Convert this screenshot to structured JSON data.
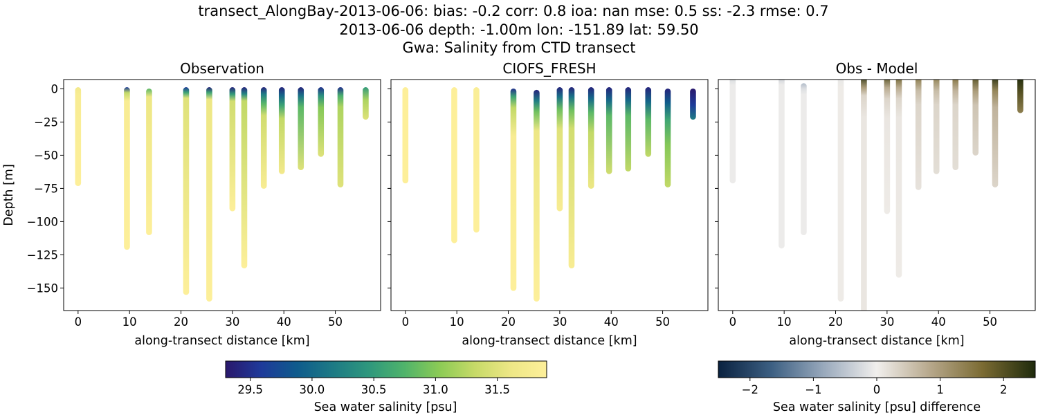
{
  "figure": {
    "title_lines": [
      "transect_AlongBay-2013-06-06: bias: -0.2  corr: 0.8  ioa: nan  mse: 0.5  ss: -2.3  rmse: 0.7",
      "2013-06-06 depth: -1.00m lon: -151.89 lat: 59.50",
      "Gwa: Salinity from CTD transect"
    ]
  },
  "chart_data": [
    {
      "type": "scatter",
      "title": "Observation",
      "xlabel": "along-transect distance [km]",
      "ylabel": "Depth [m]",
      "xticks": [
        "0",
        "10",
        "20",
        "30",
        "40",
        "50"
      ],
      "yticks": [
        "0",
        "−25",
        "−50",
        "−75",
        "−100",
        "−125",
        "−150"
      ],
      "xlim": [
        -2.8,
        58.8
      ],
      "ylim": [
        -167,
        7
      ],
      "colormap": "haline",
      "profiles": [
        {
          "x": 0.0,
          "top": -1,
          "bottom": -71,
          "stops": [
            [
              0,
              31.7
            ],
            [
              6,
              31.8
            ],
            [
              71,
              31.9
            ]
          ]
        },
        {
          "x": 9.5,
          "top": -1,
          "bottom": -119,
          "stops": [
            [
              0,
              29.6
            ],
            [
              4,
              31.3
            ],
            [
              10,
              31.8
            ],
            [
              119,
              31.9
            ]
          ]
        },
        {
          "x": 13.8,
          "top": -2,
          "bottom": -108,
          "stops": [
            [
              0,
              30.8
            ],
            [
              6,
              31.6
            ],
            [
              108,
              31.9
            ]
          ]
        },
        {
          "x": 21.0,
          "top": -1,
          "bottom": -153,
          "stops": [
            [
              0,
              29.6
            ],
            [
              4,
              30.6
            ],
            [
              8,
              31.5
            ],
            [
              153,
              31.9
            ]
          ]
        },
        {
          "x": 25.5,
          "top": -1,
          "bottom": -158,
          "stops": [
            [
              0,
              29.4
            ],
            [
              4,
              30.6
            ],
            [
              9,
              31.6
            ],
            [
              158,
              31.9
            ]
          ]
        },
        {
          "x": 30.0,
          "top": -1,
          "bottom": -90,
          "stops": [
            [
              0,
              29.4
            ],
            [
              5,
              30.5
            ],
            [
              10,
              31.4
            ],
            [
              90,
              31.9
            ]
          ]
        },
        {
          "x": 32.3,
          "top": -1,
          "bottom": -133,
          "stops": [
            [
              0,
              29.4
            ],
            [
              5,
              30.3
            ],
            [
              10,
              31.3
            ],
            [
              133,
              31.9
            ]
          ]
        },
        {
          "x": 36.1,
          "top": -1,
          "bottom": -73,
          "stops": [
            [
              0,
              29.4
            ],
            [
              5,
              30.2
            ],
            [
              12,
              30.8
            ],
            [
              20,
              31.4
            ],
            [
              73,
              31.8
            ]
          ]
        },
        {
          "x": 39.6,
          "top": -1,
          "bottom": -62,
          "stops": [
            [
              0,
              29.4
            ],
            [
              6,
              30.0
            ],
            [
              13,
              30.6
            ],
            [
              22,
              31.3
            ],
            [
              62,
              31.7
            ]
          ]
        },
        {
          "x": 43.3,
          "top": -1,
          "bottom": -59,
          "stops": [
            [
              0,
              29.4
            ],
            [
              6,
              30.1
            ],
            [
              14,
              30.8
            ],
            [
              59,
              31.5
            ]
          ]
        },
        {
          "x": 47.2,
          "top": -1,
          "bottom": -49,
          "stops": [
            [
              0,
              29.5
            ],
            [
              6,
              30.4
            ],
            [
              14,
              31.0
            ],
            [
              49,
              31.5
            ]
          ]
        },
        {
          "x": 51.0,
          "top": -1,
          "bottom": -72,
          "stops": [
            [
              0,
              29.5
            ],
            [
              6,
              30.7
            ],
            [
              14,
              31.2
            ],
            [
              72,
              31.5
            ]
          ]
        },
        {
          "x": 55.9,
          "top": -1,
          "bottom": -21,
          "stops": [
            [
              0,
              30.5
            ],
            [
              8,
              31.2
            ],
            [
              21,
              31.5
            ]
          ]
        }
      ]
    },
    {
      "type": "scatter",
      "title": "CIOFS_FRESH",
      "xlabel": "along-transect distance [km]",
      "ylabel": "",
      "xticks": [
        "0",
        "10",
        "20",
        "30",
        "40",
        "50"
      ],
      "xlim": [
        -2.8,
        58.8
      ],
      "ylim": [
        -167,
        7
      ],
      "colormap": "haline",
      "profiles": [
        {
          "x": 0.0,
          "top": -1,
          "bottom": -69,
          "stops": [
            [
              0,
              31.9
            ],
            [
              69,
              31.9
            ]
          ]
        },
        {
          "x": 9.5,
          "top": -1,
          "bottom": -114,
          "stops": [
            [
              0,
              31.9
            ],
            [
              114,
              31.9
            ]
          ]
        },
        {
          "x": 13.8,
          "top": -1,
          "bottom": -106,
          "stops": [
            [
              0,
              31.85
            ],
            [
              106,
              31.9
            ]
          ]
        },
        {
          "x": 21.0,
          "top": -2,
          "bottom": -150,
          "stops": [
            [
              0,
              29.5
            ],
            [
              6,
              30.6
            ],
            [
              14,
              31.3
            ],
            [
              35,
              31.8
            ],
            [
              150,
              31.9
            ]
          ]
        },
        {
          "x": 25.5,
          "top": -3,
          "bottom": -158,
          "stops": [
            [
              0,
              29.4
            ],
            [
              8,
              30.2
            ],
            [
              16,
              30.9
            ],
            [
              30,
              31.6
            ],
            [
              158,
              31.9
            ]
          ]
        },
        {
          "x": 30.0,
          "top": -1,
          "bottom": -90,
          "stops": [
            [
              0,
              29.4
            ],
            [
              7,
              30.1
            ],
            [
              16,
              30.9
            ],
            [
              30,
              31.5
            ],
            [
              90,
              31.8
            ]
          ]
        },
        {
          "x": 32.3,
          "top": -1,
          "bottom": -133,
          "stops": [
            [
              0,
              29.4
            ],
            [
              7,
              30.1
            ],
            [
              17,
              30.9
            ],
            [
              30,
              31.4
            ],
            [
              133,
              31.8
            ]
          ]
        },
        {
          "x": 36.1,
          "top": -1,
          "bottom": -73,
          "stops": [
            [
              0,
              29.4
            ],
            [
              8,
              30.0
            ],
            [
              18,
              30.8
            ],
            [
              32,
              31.3
            ],
            [
              73,
              31.6
            ]
          ]
        },
        {
          "x": 39.6,
          "top": -1,
          "bottom": -62,
          "stops": [
            [
              0,
              29.4
            ],
            [
              9,
              30.0
            ],
            [
              20,
              30.8
            ],
            [
              62,
              31.4
            ]
          ]
        },
        {
          "x": 43.3,
          "top": -1,
          "bottom": -60,
          "stops": [
            [
              0,
              29.4
            ],
            [
              9,
              30.0
            ],
            [
              20,
              30.8
            ],
            [
              60,
              31.3
            ]
          ]
        },
        {
          "x": 47.2,
          "top": -1,
          "bottom": -49,
          "stops": [
            [
              0,
              29.4
            ],
            [
              10,
              30.0
            ],
            [
              22,
              30.8
            ],
            [
              49,
              31.3
            ]
          ]
        },
        {
          "x": 51.0,
          "top": -2,
          "bottom": -72,
          "stops": [
            [
              0,
              29.4
            ],
            [
              10,
              29.9
            ],
            [
              22,
              30.6
            ],
            [
              40,
              31.0
            ],
            [
              72,
              31.3
            ]
          ]
        },
        {
          "x": 55.9,
          "top": -2,
          "bottom": -21,
          "stops": [
            [
              0,
              29.3
            ],
            [
              10,
              29.6
            ],
            [
              21,
              30.2
            ]
          ]
        }
      ]
    },
    {
      "type": "scatter",
      "title": "Obs - Model",
      "xlabel": "along-transect distance [km]",
      "ylabel": "",
      "xticks": [
        "0",
        "10",
        "20",
        "30",
        "40",
        "50"
      ],
      "xlim": [
        -2.8,
        58.8
      ],
      "ylim": [
        -167,
        7
      ],
      "colormap": "diff",
      "profiles": [
        {
          "x": 0.0,
          "top": 7,
          "bottom": -69,
          "stops": [
            [
              0,
              -0.3
            ],
            [
              6,
              -0.05
            ],
            [
              76,
              -0.05
            ]
          ]
        },
        {
          "x": 9.5,
          "top": 7,
          "bottom": -118,
          "stops": [
            [
              0,
              -0.4
            ],
            [
              6,
              -0.05
            ],
            [
              125,
              -0.05
            ]
          ]
        },
        {
          "x": 13.8,
          "top": 2,
          "bottom": -108,
          "stops": [
            [
              0,
              -0.6
            ],
            [
              4,
              -0.2
            ],
            [
              8,
              -0.05
            ],
            [
              110,
              -0.05
            ]
          ]
        },
        {
          "x": 21.0,
          "top": 7,
          "bottom": -158,
          "stops": [
            [
              0,
              -0.1
            ],
            [
              8,
              0.05
            ],
            [
              165,
              0.05
            ]
          ]
        },
        {
          "x": 25.5,
          "top": 7,
          "bottom": -167,
          "stops": [
            [
              0,
              2.3
            ],
            [
              8,
              1.0
            ],
            [
              14,
              0.3
            ],
            [
              30,
              0.1
            ],
            [
              174,
              0.1
            ]
          ]
        },
        {
          "x": 30.0,
          "top": 7,
          "bottom": -92,
          "stops": [
            [
              0,
              2.0
            ],
            [
              8,
              0.8
            ],
            [
              16,
              0.3
            ],
            [
              30,
              0.1
            ],
            [
              99,
              0.05
            ]
          ]
        },
        {
          "x": 32.3,
          "top": 7,
          "bottom": -140,
          "stops": [
            [
              0,
              1.8
            ],
            [
              8,
              0.8
            ],
            [
              16,
              0.3
            ],
            [
              30,
              0.1
            ],
            [
              147,
              0.05
            ]
          ]
        },
        {
          "x": 36.1,
          "top": 7,
          "bottom": -74,
          "stops": [
            [
              0,
              1.5
            ],
            [
              10,
              0.6
            ],
            [
              20,
              0.3
            ],
            [
              81,
              0.15
            ]
          ]
        },
        {
          "x": 39.6,
          "top": 7,
          "bottom": -62,
          "stops": [
            [
              0,
              1.4
            ],
            [
              10,
              0.6
            ],
            [
              20,
              0.3
            ],
            [
              69,
              0.2
            ]
          ]
        },
        {
          "x": 43.3,
          "top": 7,
          "bottom": -59,
          "stops": [
            [
              0,
              1.6
            ],
            [
              10,
              0.7
            ],
            [
              20,
              0.3
            ],
            [
              66,
              0.2
            ]
          ]
        },
        {
          "x": 47.2,
          "top": 7,
          "bottom": -48,
          "stops": [
            [
              0,
              2.0
            ],
            [
              10,
              1.0
            ],
            [
              20,
              0.5
            ],
            [
              55,
              0.3
            ]
          ]
        },
        {
          "x": 51.0,
          "top": 7,
          "bottom": -72,
          "stops": [
            [
              0,
              2.4
            ],
            [
              10,
              1.3
            ],
            [
              22,
              0.7
            ],
            [
              79,
              0.3
            ]
          ]
        },
        {
          "x": 55.9,
          "top": 7,
          "bottom": -16,
          "stops": [
            [
              0,
              2.5
            ],
            [
              10,
              2.0
            ],
            [
              23,
              1.4
            ]
          ]
        }
      ]
    }
  ],
  "colorbars": [
    {
      "label": "Sea water salinity [psu]",
      "range": [
        29.3,
        31.9
      ],
      "ticks": [
        {
          "v": 29.5,
          "t": "29.5"
        },
        {
          "v": 30.0,
          "t": "30.0"
        },
        {
          "v": 30.5,
          "t": "30.5"
        },
        {
          "v": 31.0,
          "t": "31.0"
        },
        {
          "v": 31.5,
          "t": "31.5"
        }
      ]
    },
    {
      "label": "Sea water salinity [psu] difference",
      "range": [
        -2.5,
        2.5
      ],
      "ticks": [
        {
          "v": -2,
          "t": "−2"
        },
        {
          "v": -1,
          "t": "−1"
        },
        {
          "v": 0,
          "t": "0"
        },
        {
          "v": 1,
          "t": "1"
        },
        {
          "v": 2,
          "t": "2"
        }
      ]
    }
  ],
  "colormaps": {
    "haline": [
      "#2a186c",
      "#1e3a9a",
      "#0f5b8c",
      "#1d7a85",
      "#2e977d",
      "#4fb36b",
      "#8ccb55",
      "#c7da68",
      "#eee786",
      "#fdef9a"
    ],
    "diff": [
      "#0a2240",
      "#3c5f82",
      "#99a9bc",
      "#f1efed",
      "#b7a88c",
      "#7b6b33",
      "#1e2a0c"
    ]
  }
}
